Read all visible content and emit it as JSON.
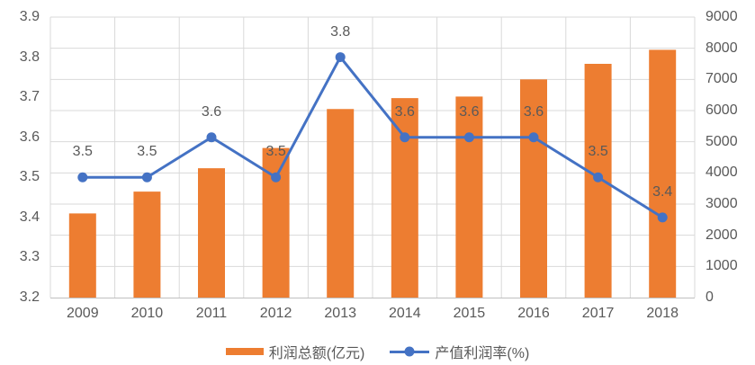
{
  "chart_data": {
    "type": "bar",
    "subtype": "combo-bar-line",
    "title": "",
    "categories": [
      "2009",
      "2010",
      "2011",
      "2012",
      "2013",
      "2014",
      "2015",
      "2016",
      "2017",
      "2018"
    ],
    "series": [
      {
        "name": "利润总额(亿元)",
        "type": "bar",
        "axis": "right",
        "values": [
          2700,
          3400,
          4150,
          4800,
          6050,
          6400,
          6450,
          7000,
          7500,
          7950
        ]
      },
      {
        "name": "产值利润率(%)",
        "type": "line",
        "axis": "left",
        "values": [
          3.5,
          3.5,
          3.6,
          3.5,
          3.8,
          3.6,
          3.6,
          3.6,
          3.5,
          3.4
        ],
        "data_labels": [
          "3.5",
          "3.5",
          "3.6",
          "3.5",
          "3.8",
          "3.6",
          "3.6",
          "3.6",
          "3.5",
          "3.4"
        ]
      }
    ],
    "left_axis": {
      "min": 3.2,
      "max": 3.9,
      "step": 0.1,
      "ticks": [
        "3.9",
        "3.8",
        "3.7",
        "3.6",
        "3.5",
        "3.4",
        "3.3",
        "3.2"
      ]
    },
    "right_axis": {
      "min": 0,
      "max": 9000,
      "step": 1000,
      "ticks": [
        "9000",
        "8000",
        "7000",
        "6000",
        "5000",
        "4000",
        "3000",
        "2000",
        "1000",
        "0"
      ]
    },
    "grid": {
      "horizontal": true,
      "vertical": true
    },
    "legend_position": "bottom"
  },
  "legend": {
    "bar_label": "利润总额(亿元)",
    "line_label": "产值利润率(%)"
  },
  "colors": {
    "bar": "#ED7D31",
    "line": "#4472C4",
    "marker": "#4472C4",
    "grid": "#D9D9D9",
    "axis_line": "#BFBFBF",
    "text": "#595959",
    "background": "#FFFFFF"
  }
}
